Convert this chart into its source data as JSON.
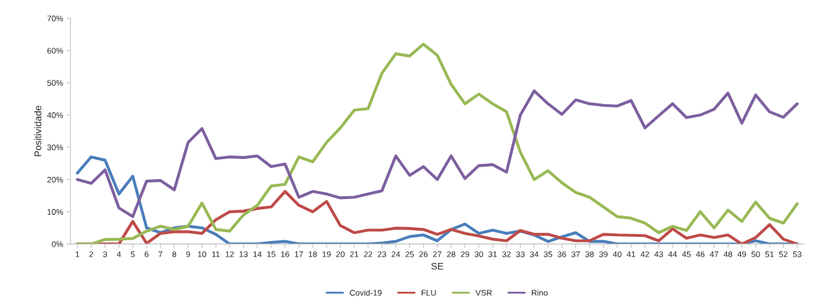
{
  "chart_data": {
    "type": "line",
    "xlabel": "SE",
    "ylabel": "Positividade",
    "categories": [
      "1",
      "2",
      "3",
      "4",
      "5",
      "6",
      "7",
      "8",
      "9",
      "10",
      "11",
      "12",
      "13",
      "14",
      "15",
      "16",
      "17",
      "18",
      "19",
      "20",
      "21",
      "22",
      "23",
      "24",
      "25",
      "26",
      "27",
      "28",
      "29",
      "30",
      "31",
      "32",
      "33",
      "34",
      "35",
      "36",
      "37",
      "38",
      "39",
      "40",
      "41",
      "42",
      "43",
      "44",
      "45",
      "46",
      "47",
      "48",
      "49",
      "50",
      "51",
      "52",
      "53"
    ],
    "series": [
      {
        "name": "Covid-19",
        "color": "#4a7ebb",
        "values": [
          22,
          27,
          26,
          15.5,
          21,
          5,
          3.5,
          5,
          5.5,
          5,
          3,
          0,
          0,
          0,
          0.5,
          0.8,
          0,
          0,
          0,
          0,
          0,
          0,
          0.3,
          0.8,
          2.3,
          2.8,
          1,
          4.5,
          6.2,
          3.3,
          4.3,
          3.3,
          4,
          2.8,
          0.8,
          2.2,
          3.5,
          0.8,
          0.8,
          0,
          0,
          0,
          0,
          0,
          0,
          0,
          0,
          0,
          0,
          1,
          0,
          0,
          0
        ]
      },
      {
        "name": "FLU",
        "color": "#be4b48",
        "values": [
          0,
          0,
          0,
          0,
          7,
          0.2,
          3.3,
          3.8,
          3.8,
          3.3,
          7.5,
          10,
          10.2,
          11,
          11.5,
          16.3,
          12,
          10,
          13.2,
          5.7,
          3.5,
          4.3,
          4.3,
          4.9,
          4.8,
          4.5,
          3,
          4.5,
          3.3,
          2.5,
          1.5,
          1,
          4.2,
          3,
          3,
          1.8,
          1,
          1,
          3,
          2.8,
          2.7,
          2.6,
          1,
          4.7,
          1.8,
          2.8,
          2,
          2.8,
          0,
          2,
          6,
          1.5,
          0
        ]
      },
      {
        "name": "VSR",
        "color": "#98b954",
        "values": [
          0,
          0,
          1.4,
          1.5,
          1.7,
          4,
          5.5,
          4.5,
          5.5,
          12.7,
          4.5,
          4,
          9,
          12,
          18,
          18.5,
          27,
          25.5,
          31.5,
          36,
          41.5,
          42,
          53,
          59,
          58.3,
          62,
          58.5,
          49.5,
          43.5,
          46.5,
          43.5,
          41,
          28.5,
          20,
          22.7,
          19,
          16,
          14.5,
          11.5,
          8.5,
          8,
          6.5,
          3.5,
          5.5,
          4.2,
          10,
          5,
          10.5,
          7,
          13,
          8,
          6.5,
          12.5
        ]
      },
      {
        "name": "Rino",
        "color": "#7d60a0",
        "values": [
          20,
          18.8,
          23,
          11.2,
          8.5,
          19.5,
          19.7,
          16.8,
          31.5,
          35.8,
          26.5,
          27,
          26.8,
          27.3,
          24,
          24.8,
          14.5,
          16.3,
          15.5,
          14.3,
          14.5,
          15.5,
          16.5,
          27.3,
          21.3,
          24,
          20,
          27.3,
          20.3,
          24.3,
          24.6,
          22.3,
          40,
          47.5,
          43.5,
          40.2,
          44.7,
          43.5,
          43,
          42.8,
          44.5,
          36,
          39.8,
          43.5,
          39.2,
          40,
          41.8,
          46.8,
          37.5,
          46.2,
          41,
          39.3,
          43.5
        ]
      }
    ],
    "ylim": [
      0,
      70
    ],
    "yticks": [
      {
        "value": 0,
        "label": "0%"
      },
      {
        "value": 10,
        "label": "10%"
      },
      {
        "value": 20,
        "label": "20%"
      },
      {
        "value": 30,
        "label": "30%"
      },
      {
        "value": 40,
        "label": "40%"
      },
      {
        "value": 50,
        "label": "50%"
      },
      {
        "value": 60,
        "label": "60%"
      },
      {
        "value": 70,
        "label": "70%"
      }
    ],
    "grid": false,
    "legend": "bottom",
    "marker": "none",
    "line_style": "solid"
  }
}
